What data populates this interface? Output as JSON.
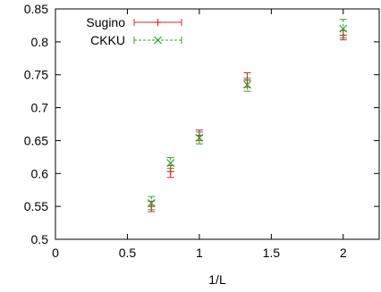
{
  "chart_data": {
    "type": "scatter",
    "title": "",
    "xlabel": "1/L",
    "ylabel": "",
    "xlim": [
      0,
      2.25
    ],
    "ylim": [
      0.5,
      0.85
    ],
    "xticks": [
      0,
      0.5,
      1,
      1.5,
      2
    ],
    "xtick_labels": [
      "0",
      "0.5",
      "1",
      "1.5",
      "2"
    ],
    "yticks": [
      0.5,
      0.55,
      0.6,
      0.65,
      0.7,
      0.75,
      0.8,
      0.85
    ],
    "ytick_labels": [
      "0.5",
      "0.55",
      "0.6",
      "0.65",
      "0.7",
      "0.75",
      "0.8",
      "0.85"
    ],
    "grid": false,
    "legend_position": "top-left",
    "series": [
      {
        "name": "Sugino",
        "color": "#d62728",
        "marker": "plus",
        "errorbars": true,
        "points": [
          {
            "x": 0.667,
            "y": 0.55,
            "err": 0.008
          },
          {
            "x": 0.8,
            "y": 0.603,
            "err": 0.009
          },
          {
            "x": 1.0,
            "y": 0.658,
            "err": 0.008
          },
          {
            "x": 1.333,
            "y": 0.742,
            "err": 0.011
          },
          {
            "x": 2.0,
            "y": 0.81,
            "err": 0.007
          }
        ]
      },
      {
        "name": "CKKU",
        "color": "#2ca02c",
        "marker": "x",
        "errorbars": true,
        "points": [
          {
            "x": 0.667,
            "y": 0.555,
            "err": 0.01
          },
          {
            "x": 0.8,
            "y": 0.616,
            "err": 0.008
          },
          {
            "x": 1.0,
            "y": 0.654,
            "err": 0.009
          },
          {
            "x": 1.333,
            "y": 0.735,
            "err": 0.01
          },
          {
            "x": 2.0,
            "y": 0.82,
            "err": 0.014
          }
        ]
      }
    ]
  }
}
